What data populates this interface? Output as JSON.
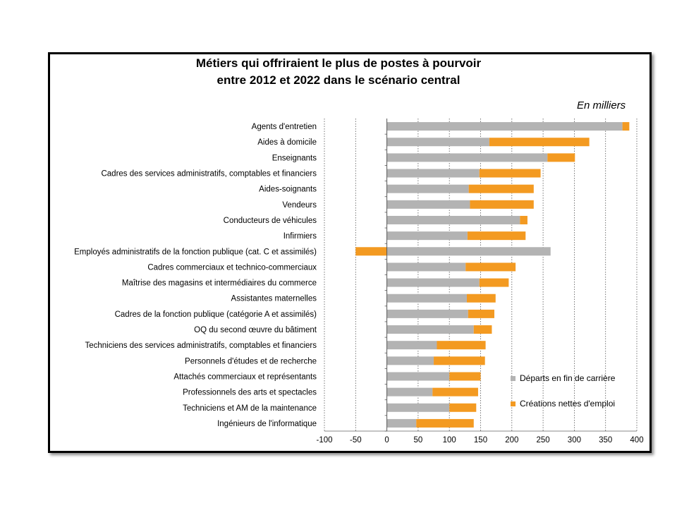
{
  "chart_data": {
    "type": "bar",
    "orientation": "horizontal",
    "stacked": true,
    "title_line1": "Métiers qui offriraient le plus de postes à pourvoir",
    "title_line2": "entre 2012 et 2022 dans le scénario central",
    "unit_label": "En milliers",
    "xlim": [
      -100,
      400
    ],
    "xticks": [
      -100,
      -50,
      0,
      50,
      100,
      150,
      200,
      250,
      300,
      350,
      400
    ],
    "grid": true,
    "legend_position": "bottom-right",
    "categories": [
      "Agents d'entretien",
      "Aides à domicile",
      "Enseignants",
      "Cadres des services administratifs, comptables et financiers",
      "Aides-soignants",
      "Vendeurs",
      "Conducteurs de véhicules",
      "Infirmiers",
      "Employés administratifs de la fonction publique (cat. C et assimilés)",
      "Cadres commerciaux et technico-commerciaux",
      "Maîtrise des magasins et intermédiaires du commerce",
      "Assistantes maternelles",
      "Cadres de la fonction publique (catégorie A et assimilés)",
      "OQ du second œuvre du bâtiment",
      "Techniciens des services administratifs, comptables et financiers",
      "Personnels d'études et de recherche",
      "Attachés commerciaux et représentants",
      "Professionnels des arts et spectacles",
      "Techniciens et AM de la maintenance",
      "Ingénieurs de l'informatique"
    ],
    "series": [
      {
        "name": "Départs en fin de carrière",
        "color": "#b3b3b3",
        "values": [
          377,
          164,
          257,
          148,
          131,
          133,
          213,
          129,
          262,
          126,
          148,
          128,
          130,
          139,
          80,
          75,
          100,
          73,
          100,
          47
        ]
      },
      {
        "name": "Créations nettes d'emploi",
        "color": "#f39a21",
        "values": [
          11,
          160,
          44,
          98,
          104,
          102,
          12,
          93,
          -50,
          80,
          47,
          46,
          42,
          29,
          78,
          82,
          50,
          73,
          43,
          92
        ]
      }
    ]
  }
}
